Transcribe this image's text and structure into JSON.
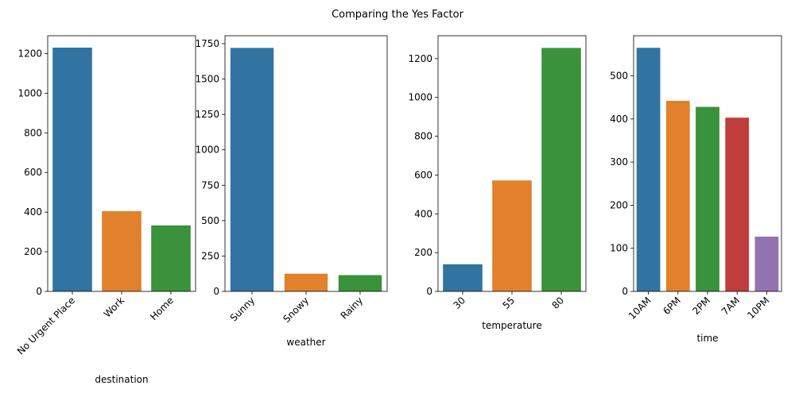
{
  "suptitle": "Comparing the Yes Factor",
  "palette": [
    "#3274a1",
    "#e1812c",
    "#3a923a",
    "#c03d3e",
    "#9372b2"
  ],
  "chart_data": [
    {
      "type": "bar",
      "categories": [
        "No Urgent Place",
        "Work",
        "Home"
      ],
      "values": [
        1230,
        405,
        333
      ],
      "xlabel": "destination",
      "ylabel": "",
      "ylim": [
        0,
        1290
      ],
      "yticks": [
        0,
        200,
        400,
        600,
        800,
        1000,
        1200
      ]
    },
    {
      "type": "bar",
      "categories": [
        "Sunny",
        "Snowy",
        "Rainy"
      ],
      "values": [
        1720,
        125,
        115
      ],
      "xlabel": "weather",
      "ylabel": "",
      "ylim": [
        0,
        1806
      ],
      "yticks": [
        0,
        250,
        500,
        750,
        1000,
        1250,
        1500,
        1750
      ]
    },
    {
      "type": "bar",
      "categories": [
        "30",
        "55",
        "80"
      ],
      "values": [
        140,
        572,
        1255
      ],
      "xlabel": "temperature",
      "ylabel": "",
      "ylim": [
        0,
        1318
      ],
      "yticks": [
        0,
        200,
        400,
        600,
        800,
        1000,
        1200
      ]
    },
    {
      "type": "bar",
      "categories": [
        "10AM",
        "6PM",
        "2PM",
        "7AM",
        "10PM"
      ],
      "values": [
        565,
        442,
        428,
        403,
        127
      ],
      "xlabel": "time",
      "ylabel": "",
      "ylim": [
        0,
        593
      ],
      "yticks": [
        0,
        100,
        200,
        300,
        400,
        500
      ]
    }
  ]
}
